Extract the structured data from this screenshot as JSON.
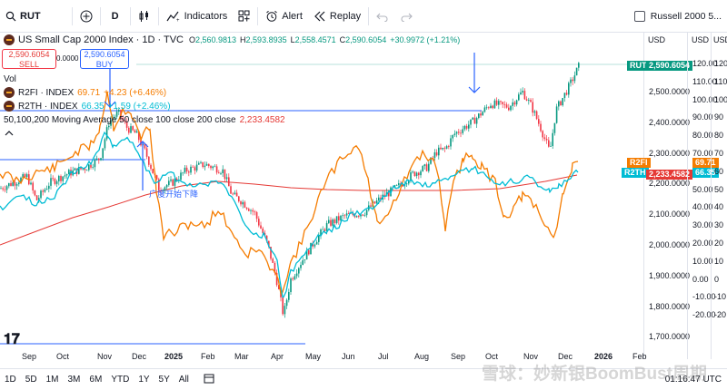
{
  "toolbar": {
    "symbol": "RUT",
    "interval": "D",
    "indicators": "Indicators",
    "alert": "Alert",
    "replay": "Replay",
    "compare_symbol": "Russell 2000 5..."
  },
  "legend": {
    "title": "US Small Cap 2000 Index · 1D · TVC",
    "o_label": "O",
    "o": "2,560.9813",
    "h_label": "H",
    "h": "2,593.8935",
    "l_label": "L",
    "l": "2,558.4571",
    "c_label": "C",
    "c": "2,590.6054",
    "change": "+30.9972 (+1.21%)",
    "sell_price": "2,590.6054",
    "sell_label": "SELL",
    "spread": "0.0000",
    "buy_price": "2,590.6054",
    "buy_label": "BUY",
    "vol": "Vol",
    "r2fi_name": "R2FI · INDEX",
    "r2fi_val": "69.71",
    "r2fi_chg": "+4.23 (+6.46%)",
    "r2th_name": "R2TH · INDEX",
    "r2th_val": "66.35",
    "r2th_chg": "+1.59 (+2.46%)",
    "ma_text": "50,100,200 Moving Average 50 close 100 close 200 close",
    "ma_val": "2,233.4582",
    "annotation": "广度开始下降"
  },
  "price_axis": {
    "unit": "USD",
    "labels": [
      "2,500.0000",
      "2,400.0000",
      "2,300.0000",
      "2,200.0000",
      "2,100.0000",
      "2,000.0000",
      "1,900.0000",
      "1,800.0000",
      "1,700.0000"
    ],
    "tag_rut_name": "RUT",
    "tag_rut_val": "2,590.6054",
    "tag_r2fi": "R2FI",
    "tag_r2th": "R2TH",
    "tag_ma": "2,233.4582"
  },
  "pct_axis_1": {
    "unit": "USD",
    "labels": [
      "120.00",
      "110.00",
      "100.00",
      "90.00",
      "80.00",
      "70.00",
      "60.00",
      "50.00",
      "40.00",
      "30.00",
      "20.00",
      "10.00",
      "0.00",
      "-10.00",
      "-20.00"
    ],
    "tag_r2fi_val": "69.71",
    "tag_r2th_val": "66.35"
  },
  "pct_axis_2": {
    "unit": "USD",
    "labels": [
      "120",
      "110",
      "100",
      "90",
      "80",
      "70",
      "60",
      "50",
      "40",
      "30",
      "20",
      "10",
      "0",
      "-10",
      "-20"
    ]
  },
  "time_axis": [
    "Sep",
    "Oct",
    "Nov",
    "Dec",
    "2025",
    "Feb",
    "Mar",
    "Apr",
    "May",
    "Jun",
    "Jul",
    "Aug",
    "Sep",
    "Oct",
    "Nov",
    "Dec",
    "2026",
    "Feb"
  ],
  "bottom": {
    "ranges": [
      "1D",
      "5D",
      "1M",
      "3M",
      "6M",
      "YTD",
      "1Y",
      "5Y",
      "All"
    ],
    "clock": "01:16:47 UTC"
  },
  "watermark": "雪球：妙新银BoomBust周期",
  "colors": {
    "up": "#089981",
    "down": "#f23645",
    "r2fi": "#f57c00",
    "r2th": "#00bcd4",
    "ma": "#e53935",
    "hline": "#2962ff"
  }
}
